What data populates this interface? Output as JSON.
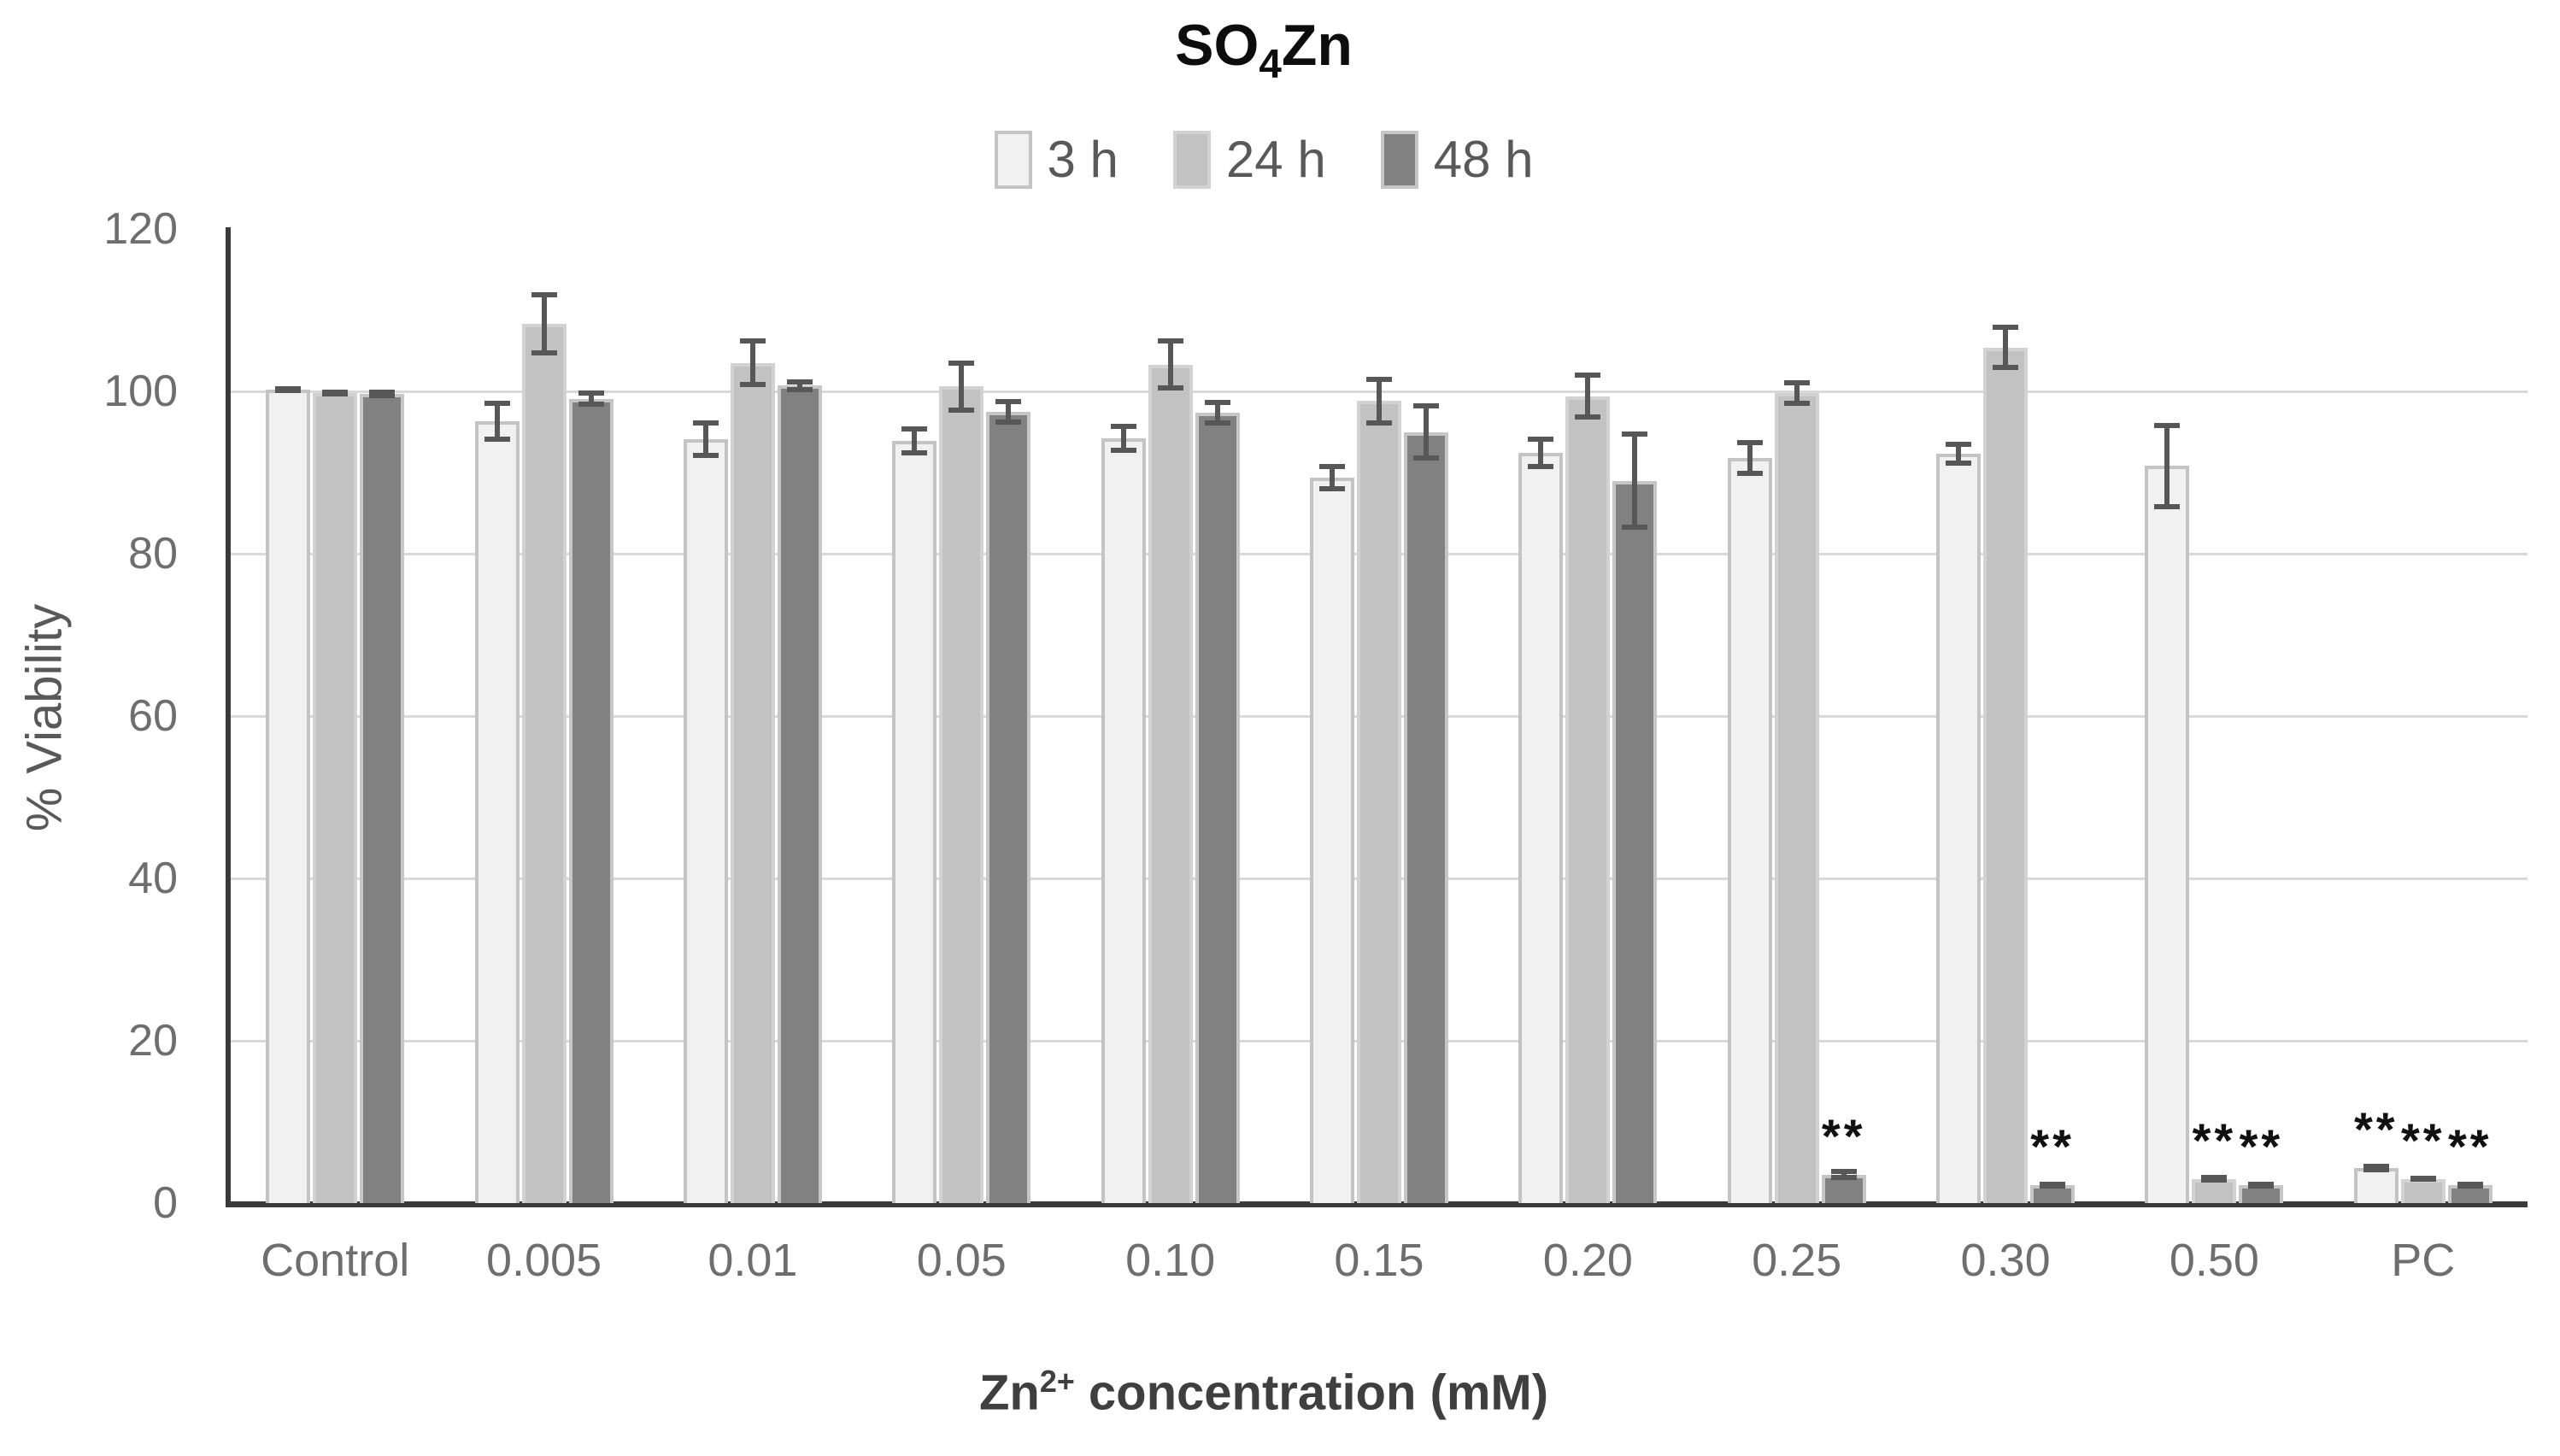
{
  "title": {
    "part1": "SO",
    "sub": "4",
    "part2": "Zn"
  },
  "legend": [
    {
      "label": "3 h"
    },
    {
      "label": "24 h"
    },
    {
      "label": "48 h"
    }
  ],
  "y_axis": {
    "label": "% Viability"
  },
  "x_axis": {
    "label_main": "Zn",
    "label_sup": "2+",
    "label_rest": " concentration (mM)"
  },
  "colors": {
    "grid": "#d9d9d9",
    "axis": "#3a3a3a",
    "tick_text": "#6e6e6e",
    "error_bar": "#575757",
    "significance": "#111111"
  },
  "chart_data": {
    "type": "bar",
    "title": "SO4Zn",
    "xlabel": "Zn2+ concentration (mM)",
    "ylabel": "% Viability",
    "ylim": [
      0,
      120
    ],
    "yticks": [
      0,
      20,
      40,
      60,
      80,
      100,
      120
    ],
    "grid": "horizontal",
    "legend_position": "top",
    "significance_marker": "**",
    "categories": [
      "Control",
      "0.005",
      "0.01",
      "0.05",
      "0.10",
      "0.15",
      "0.20",
      "0.25",
      "0.30",
      "0.50",
      "PC"
    ],
    "series": [
      {
        "name": "3 h",
        "fill": "#f1f1f1",
        "border": "#c4c4c4",
        "values": [
          100.2,
          96.3,
          94.1,
          93.9,
          94.2,
          89.4,
          92.4,
          91.8,
          92.3,
          90.8,
          4.3
        ],
        "errors": [
          0.4,
          2.5,
          2.3,
          1.8,
          1.8,
          1.7,
          2.0,
          2.2,
          1.5,
          5.3,
          0.5
        ],
        "sig": [
          0,
          0,
          0,
          0,
          0,
          0,
          0,
          0,
          0,
          0,
          1
        ]
      },
      {
        "name": "24 h",
        "fill": "#c2c2c2",
        "border": "#d2d2d2",
        "values": [
          99.8,
          108.3,
          103.5,
          100.6,
          103.3,
          98.8,
          99.4,
          99.8,
          105.4,
          3.0,
          3.0
        ],
        "errors": [
          0.4,
          3.9,
          3.0,
          3.2,
          3.2,
          3.0,
          2.9,
          1.6,
          2.8,
          0.5,
          0.4
        ],
        "sig": [
          0,
          0,
          0,
          0,
          0,
          0,
          0,
          0,
          0,
          1,
          1
        ]
      },
      {
        "name": "48 h",
        "fill": "#818181",
        "border": "#c6c6c6",
        "values": [
          99.7,
          99.1,
          100.7,
          97.5,
          97.4,
          95.0,
          89.0,
          3.5,
          2.2,
          2.2,
          2.2
        ],
        "errors": [
          0.5,
          1.0,
          0.8,
          1.6,
          1.6,
          3.5,
          6.1,
          0.7,
          0.4,
          0.4,
          0.4
        ],
        "sig": [
          0,
          0,
          0,
          0,
          0,
          0,
          0,
          1,
          1,
          1,
          1
        ]
      }
    ]
  }
}
